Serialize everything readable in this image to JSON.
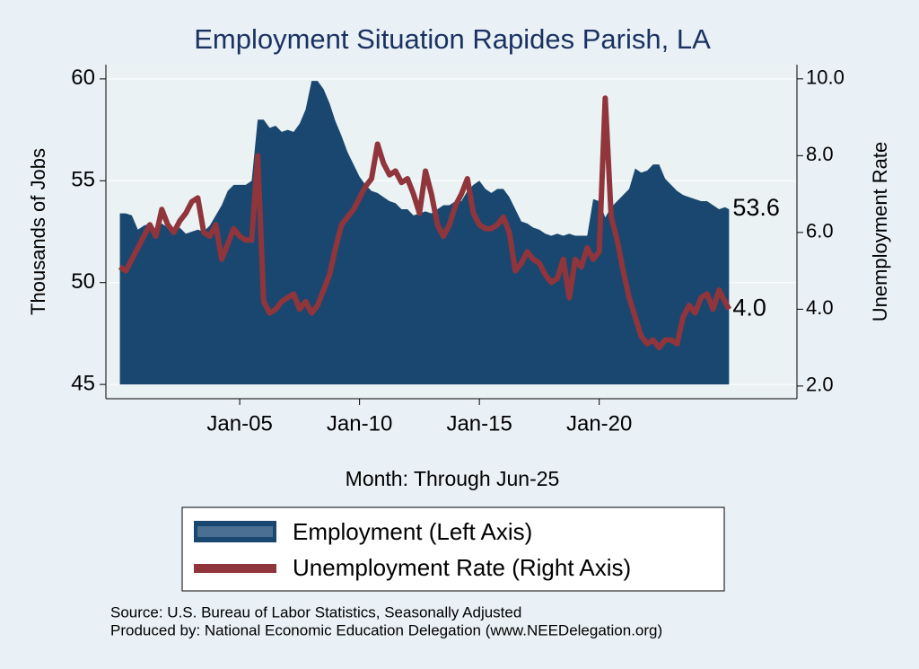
{
  "chart_data": {
    "type": "area-line",
    "title": "Employment Situation Rapides Parish, LA",
    "x_label": "Month: Through Jun-25",
    "y_label": "Thousands of Jobs",
    "y2_label": "Unemployment Rate",
    "source": "Source: U.S. Bureau of Labor Statistics, Seasonally Adjusted",
    "producer": "Produced by: National Economic Education Delegation (www.NEEDelegation.org)",
    "xlim": [
      "Jun-99",
      "Apr-28"
    ],
    "xticks": [
      "Jan-05",
      "Jan-10",
      "Jan-15",
      "Jan-20"
    ],
    "ylim": [
      44.3,
      60.7
    ],
    "yticks": [
      45,
      50,
      55,
      60
    ],
    "y2lim": [
      1.67,
      10.37
    ],
    "y2ticks": [
      {
        "value": 2,
        "label": "2.0"
      },
      {
        "value": 4,
        "label": "4.0"
      },
      {
        "value": 6,
        "label": "6.0"
      },
      {
        "value": 8,
        "label": "8.0"
      },
      {
        "value": 10,
        "label": "10.0"
      }
    ],
    "grid": true,
    "x": [
      "Jan-00",
      "Apr-00",
      "Jul-00",
      "Oct-00",
      "Jan-01",
      "Apr-01",
      "Jul-01",
      "Oct-01",
      "Jan-02",
      "Apr-02",
      "Jul-02",
      "Oct-02",
      "Jan-03",
      "Apr-03",
      "Jul-03",
      "Oct-03",
      "Jan-04",
      "Apr-04",
      "Jul-04",
      "Oct-04",
      "Jan-05",
      "Apr-05",
      "Jul-05",
      "Oct-05",
      "Jan-06",
      "Apr-06",
      "Jul-06",
      "Oct-06",
      "Jan-07",
      "Apr-07",
      "Jul-07",
      "Oct-07",
      "Jan-08",
      "Apr-08",
      "Jul-08",
      "Oct-08",
      "Jan-09",
      "Apr-09",
      "Jul-09",
      "Oct-09",
      "Jan-10",
      "Apr-10",
      "Jul-10",
      "Oct-10",
      "Jan-11",
      "Apr-11",
      "Jul-11",
      "Oct-11",
      "Jan-12",
      "Apr-12",
      "Jul-12",
      "Oct-12",
      "Jan-13",
      "Apr-13",
      "Jul-13",
      "Oct-13",
      "Jan-14",
      "Apr-14",
      "Jul-14",
      "Oct-14",
      "Jan-15",
      "Apr-15",
      "Jul-15",
      "Oct-15",
      "Jan-16",
      "Apr-16",
      "Jul-16",
      "Oct-16",
      "Jan-17",
      "Apr-17",
      "Jul-17",
      "Oct-17",
      "Jan-18",
      "Apr-18",
      "Jul-18",
      "Oct-18",
      "Jan-19",
      "Apr-19",
      "Jul-19",
      "Oct-19",
      "Jan-20",
      "Apr-20",
      "Jul-20",
      "Oct-20",
      "Jan-21",
      "Apr-21",
      "Jul-21",
      "Oct-21",
      "Jan-22",
      "Apr-22",
      "Jul-22",
      "Oct-22",
      "Jan-23",
      "Apr-23",
      "Jul-23",
      "Oct-23",
      "Jan-24",
      "Apr-24",
      "Jul-24",
      "Oct-24",
      "Jan-25",
      "Apr-25",
      "Jun-25"
    ],
    "series": [
      {
        "name": "Employment (Left Axis)",
        "color": "#1a476f",
        "kind": "area",
        "values": [
          53.4,
          53.4,
          53.3,
          52.6,
          52.8,
          52.9,
          52.5,
          52.9,
          52.7,
          52.4,
          52.7,
          52.4,
          52.5,
          52.6,
          52.5,
          52.8,
          53.3,
          53.8,
          54.5,
          54.8,
          54.8,
          54.8,
          55.0,
          58.0,
          58.0,
          57.6,
          57.7,
          57.4,
          57.5,
          57.4,
          57.8,
          58.5,
          59.9,
          59.9,
          59.5,
          58.8,
          57.9,
          57.2,
          56.4,
          55.8,
          55.2,
          54.8,
          54.5,
          54.4,
          54.2,
          54.0,
          53.9,
          53.6,
          53.6,
          53.3,
          53.4,
          53.5,
          53.4,
          53.6,
          53.8,
          53.8,
          54.0,
          54.0,
          54.5,
          54.8,
          55.0,
          54.6,
          54.4,
          54.6,
          54.6,
          54.2,
          53.6,
          53.0,
          52.9,
          52.7,
          52.6,
          52.4,
          52.3,
          52.4,
          52.3,
          52.4,
          52.3,
          52.3,
          52.3,
          54.1,
          54.0,
          53.2,
          53.7,
          54.0,
          54.3,
          54.6,
          55.6,
          55.4,
          55.5,
          55.8,
          55.8,
          55.1,
          54.8,
          54.5,
          54.3,
          54.2,
          54.1,
          54.0,
          54.0,
          53.8,
          53.6,
          53.7,
          53.6
        ]
      },
      {
        "name": "Unemployment Rate (Right Axis)",
        "color": "#90353b",
        "kind": "line",
        "axis": "y2",
        "values": [
          5.1,
          5.0,
          5.3,
          5.6,
          5.9,
          6.2,
          5.9,
          6.6,
          6.2,
          6.0,
          6.3,
          6.5,
          6.8,
          6.9,
          6.0,
          5.9,
          6.2,
          5.3,
          5.7,
          6.1,
          5.9,
          5.8,
          5.8,
          8.0,
          4.2,
          3.9,
          4.0,
          4.2,
          4.3,
          4.4,
          4.0,
          4.2,
          3.9,
          4.1,
          4.5,
          4.9,
          5.6,
          6.2,
          6.4,
          6.6,
          6.9,
          7.2,
          7.4,
          8.3,
          7.8,
          7.5,
          7.6,
          7.3,
          7.4,
          7.0,
          6.5,
          7.6,
          7.0,
          6.2,
          5.9,
          6.2,
          6.7,
          7.0,
          7.4,
          6.5,
          6.2,
          6.1,
          6.1,
          6.2,
          6.4,
          6.0,
          5.0,
          5.2,
          5.5,
          5.3,
          5.2,
          4.9,
          4.7,
          4.8,
          5.3,
          4.3,
          5.3,
          5.1,
          5.6,
          5.3,
          5.5,
          9.5,
          6.4,
          5.8,
          5.0,
          4.3,
          3.8,
          3.3,
          3.1,
          3.2,
          3.0,
          3.2,
          3.2,
          3.1,
          3.8,
          4.1,
          3.9,
          4.3,
          4.4,
          4.0,
          4.5,
          4.2,
          4.0
        ],
        "value_labels": [
          null,
          null,
          null,
          null,
          null,
          null,
          null,
          null,
          null,
          null,
          null,
          null,
          null,
          null,
          null,
          null,
          null,
          null,
          null,
          null,
          null,
          null,
          null,
          null,
          null,
          null,
          null,
          null,
          null,
          null,
          null,
          null,
          null,
          null,
          null,
          null,
          null,
          null,
          null,
          null,
          null,
          null,
          null,
          null,
          null,
          null,
          null,
          null,
          null,
          null,
          null,
          null,
          null,
          null,
          null,
          null,
          null,
          null,
          null,
          null,
          null,
          null,
          null,
          null,
          null,
          null,
          null,
          null,
          null,
          null,
          null,
          null,
          null,
          null,
          null,
          null,
          null,
          null,
          null,
          null,
          null,
          null,
          null,
          null,
          null,
          null,
          null,
          null,
          null,
          null,
          null,
          null,
          null,
          null,
          null,
          null,
          null,
          null,
          null,
          null,
          null,
          null,
          "4.0"
        ]
      }
    ]
  }
}
